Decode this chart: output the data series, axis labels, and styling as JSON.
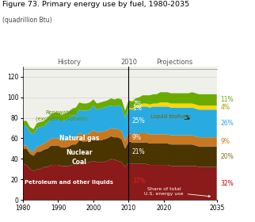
{
  "title": "Figure 73. Primary energy use by fuel, 1980-2035",
  "subtitle": "(quadrillion Btu)",
  "ylim": [
    0,
    130
  ],
  "yticks": [
    0,
    20,
    40,
    60,
    80,
    100,
    120
  ],
  "history_label": "History",
  "projections_label": "Projections",
  "divider_year": 2010,
  "colors": {
    "petroleum": "#8B1A1A",
    "coal": "#4A3500",
    "nuclear": "#C87820",
    "natural_gas": "#29ABE2",
    "renewables": "#6AAB00",
    "liquid_biofuels": "#FFD700"
  },
  "history_years": [
    1980,
    1981,
    1982,
    1983,
    1984,
    1985,
    1986,
    1987,
    1988,
    1989,
    1990,
    1991,
    1992,
    1993,
    1994,
    1995,
    1996,
    1997,
    1998,
    1999,
    2000,
    2001,
    2002,
    2003,
    2004,
    2005,
    2006,
    2007,
    2008,
    2009,
    2010
  ],
  "projection_years": [
    2010,
    2011,
    2012,
    2013,
    2014,
    2015,
    2016,
    2017,
    2018,
    2019,
    2020,
    2021,
    2022,
    2023,
    2024,
    2025,
    2026,
    2027,
    2028,
    2029,
    2030,
    2031,
    2032,
    2033,
    2034,
    2035
  ],
  "history_petroleum": [
    35,
    34,
    30,
    28,
    30,
    30,
    32,
    32,
    34,
    34,
    34,
    33,
    33,
    33,
    34,
    34,
    36,
    36,
    36,
    37,
    38,
    37,
    37,
    37,
    38,
    40,
    39,
    38,
    37,
    32,
    36
  ],
  "history_coal": [
    15,
    16,
    15,
    15,
    17,
    17,
    17,
    18,
    19,
    19,
    19,
    18,
    18,
    19,
    20,
    20,
    22,
    21,
    21,
    21,
    22,
    21,
    21,
    22,
    22,
    22,
    22,
    23,
    22,
    18,
    21
  ],
  "history_nuclear": [
    3,
    3,
    3,
    4,
    5,
    6,
    6,
    7,
    7,
    7,
    7,
    7,
    7,
    7,
    7,
    7,
    7,
    7,
    7,
    7,
    8,
    8,
    8,
    8,
    8,
    8,
    8,
    8,
    8,
    8,
    8
  ],
  "history_natural_gas": [
    19,
    19,
    18,
    17,
    18,
    18,
    17,
    18,
    19,
    19,
    19,
    19,
    20,
    21,
    21,
    22,
    23,
    23,
    23,
    23,
    24,
    22,
    23,
    23,
    23,
    22,
    22,
    23,
    24,
    22,
    24
  ],
  "history_renewables": [
    5,
    5,
    5,
    5,
    5,
    5,
    5,
    5,
    5,
    6,
    6,
    6,
    6,
    6,
    7,
    7,
    7,
    7,
    7,
    7,
    6,
    6,
    6,
    6,
    6,
    7,
    7,
    7,
    7,
    7,
    7
  ],
  "history_liquid_biofuels": [
    0,
    0,
    0,
    0,
    0,
    0,
    0,
    0,
    0,
    0,
    0,
    0,
    0,
    0,
    0,
    0,
    0,
    0,
    0,
    0,
    0,
    0,
    0,
    0,
    0,
    0,
    0,
    0,
    0,
    0,
    1
  ],
  "proj_petroleum": [
    36,
    35,
    35,
    35,
    35,
    35,
    34,
    34,
    34,
    34,
    34,
    34,
    33,
    33,
    33,
    33,
    33,
    33,
    33,
    33,
    32,
    32,
    32,
    32,
    32,
    32
  ],
  "proj_coal": [
    21,
    21,
    21,
    21,
    21,
    21,
    21,
    21,
    21,
    21,
    21,
    21,
    21,
    21,
    21,
    21,
    21,
    21,
    21,
    20,
    20,
    20,
    20,
    20,
    20,
    20
  ],
  "proj_nuclear": [
    8,
    8,
    9,
    9,
    9,
    9,
    9,
    9,
    9,
    9,
    9,
    9,
    9,
    9,
    9,
    9,
    9,
    9,
    9,
    9,
    9,
    9,
    9,
    9,
    9,
    9
  ],
  "proj_natural_gas": [
    24,
    24,
    25,
    25,
    26,
    26,
    26,
    27,
    27,
    27,
    27,
    27,
    27,
    27,
    27,
    27,
    27,
    27,
    27,
    27,
    27,
    27,
    27,
    27,
    27,
    27
  ],
  "proj_renewables": [
    7,
    7,
    7,
    8,
    8,
    8,
    9,
    9,
    9,
    10,
    10,
    10,
    10,
    10,
    10,
    10,
    10,
    10,
    11,
    11,
    11,
    11,
    11,
    11,
    11,
    11
  ],
  "proj_liquid_biofuels": [
    1,
    1,
    2,
    2,
    3,
    3,
    3,
    3,
    3,
    4,
    4,
    4,
    4,
    4,
    4,
    4,
    4,
    4,
    4,
    4,
    4,
    4,
    4,
    4,
    4,
    4
  ],
  "background_color": "#FFFFFF",
  "plot_bg": "#F0F0EA"
}
